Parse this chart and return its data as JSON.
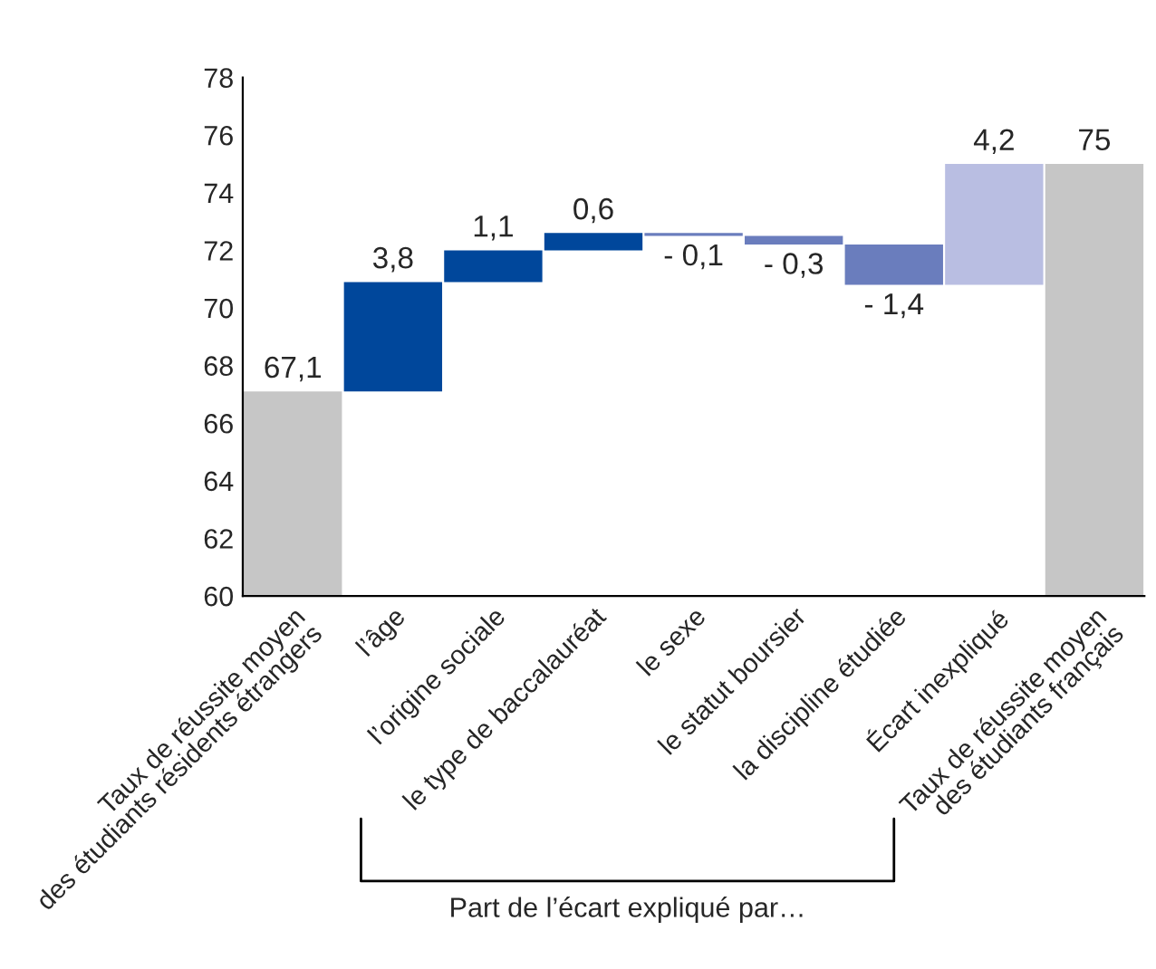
{
  "chart_data": {
    "type": "bar",
    "categories": [
      "Taux de réussite moyen\ndes étudiants résidents étrangers",
      "l’âge",
      "l’origine sociale",
      "le type de baccalauréat",
      "le sexe",
      "le statut boursier",
      "la discipline étudiée",
      "Écart inexpliqué",
      "Taux de réussite moyen\ndes étudiants français"
    ],
    "values": [
      67.1,
      3.8,
      1.1,
      0.6,
      -0.1,
      -0.3,
      -1.4,
      4.2,
      75
    ],
    "base": [
      null,
      67.1,
      70.9,
      72.0,
      72.6,
      72.5,
      72.2,
      70.8,
      null
    ],
    "colors": [
      "#c6c6c6",
      "#00479b",
      "#00479b",
      "#00479b",
      "#6a7dbd",
      "#6a7dbd",
      "#6a7dbd",
      "#b9bee2",
      "#c6c6c6"
    ],
    "value_labels": [
      "67,1",
      "3,8",
      "1,1",
      "0,6",
      "- 0,1",
      "- 0,3",
      "- 1,4",
      "4,2",
      "75"
    ],
    "ylim": [
      60,
      78
    ],
    "yticks": [
      60,
      62,
      64,
      66,
      68,
      70,
      72,
      74,
      76,
      78
    ],
    "grid": false,
    "legend": false,
    "annotations": [
      "Part de l’écart expliqué par…"
    ]
  }
}
